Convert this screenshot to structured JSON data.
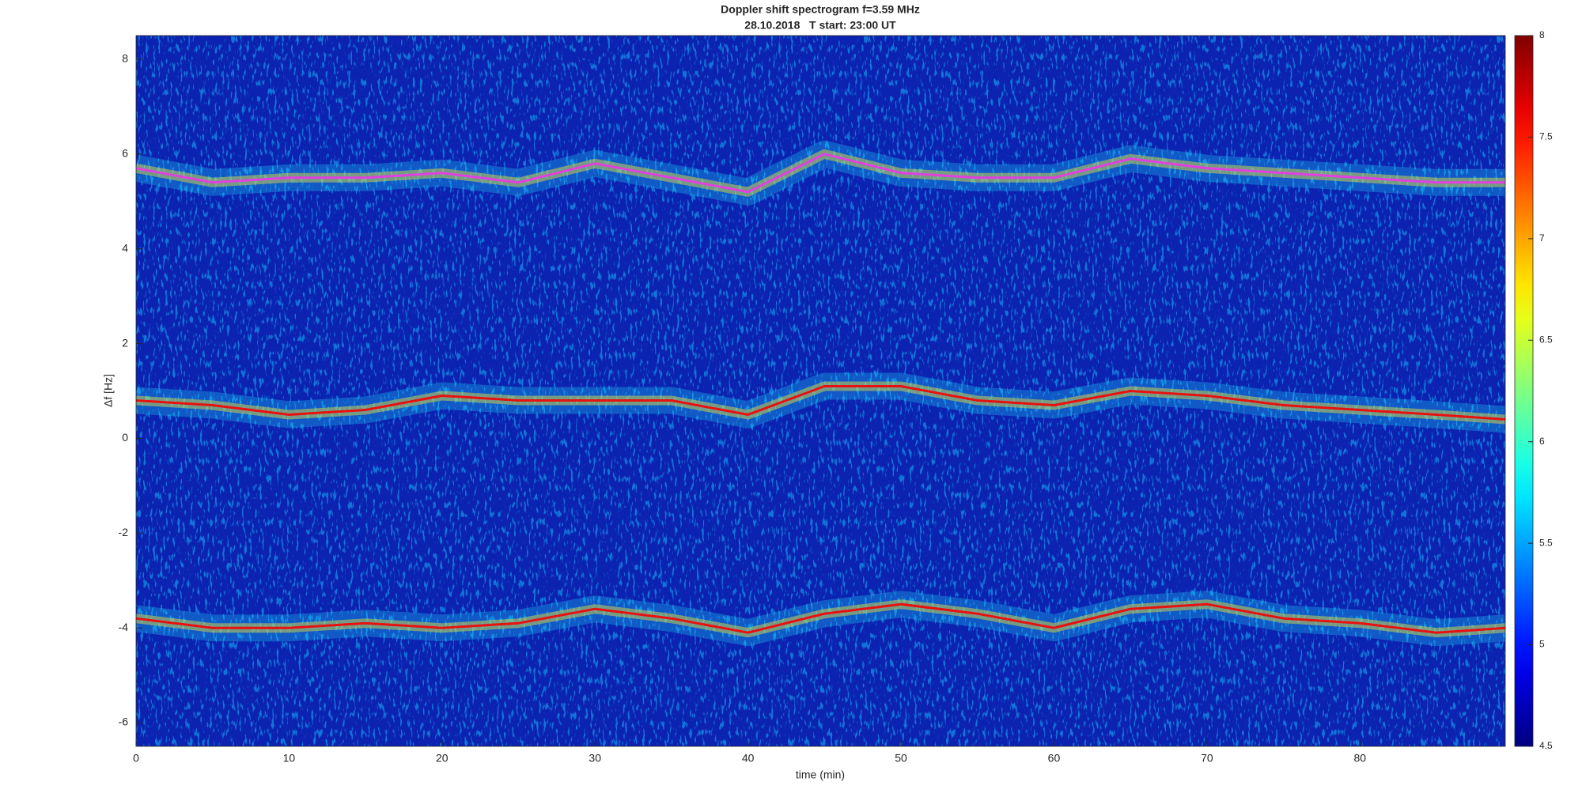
{
  "chart_data": {
    "type": "spectrogram",
    "title": "Doppler shift spectrogram f=3.59 MHz",
    "subtitle": "28.10.2018   T start: 23:00 UT",
    "x_label": "time (min)",
    "y_label": "Δf [Hz]",
    "x": [
      0,
      5,
      10,
      15,
      20,
      25,
      30,
      35,
      40,
      45,
      50,
      55,
      60,
      65,
      70,
      75,
      80,
      85,
      89.5
    ],
    "series": [
      {
        "color": "#e040e0",
        "values": [
          5.7,
          5.4,
          5.5,
          5.5,
          5.6,
          5.4,
          5.8,
          5.5,
          5.2,
          6.0,
          5.6,
          5.5,
          5.5,
          5.9,
          5.7,
          5.6,
          5.5,
          5.4,
          5.4
        ]
      },
      {
        "color": "#e81010",
        "values": [
          0.8,
          0.7,
          0.5,
          0.6,
          0.9,
          0.8,
          0.8,
          0.8,
          0.5,
          1.1,
          1.1,
          0.8,
          0.7,
          1.0,
          0.9,
          0.7,
          0.6,
          0.5,
          0.4
        ]
      },
      {
        "color": "#e81010",
        "values": [
          -3.8,
          -4.0,
          -4.0,
          -3.9,
          -4.0,
          -3.9,
          -3.6,
          -3.8,
          -4.1,
          -3.7,
          -3.5,
          -3.7,
          -4.0,
          -3.6,
          -3.5,
          -3.8,
          -3.9,
          -4.1,
          -4.0
        ]
      }
    ],
    "xlim": [
      0,
      89.5
    ],
    "xticks": [
      0,
      10,
      20,
      30,
      40,
      50,
      60,
      70,
      80
    ],
    "ylim": [
      -6.5,
      8.5
    ],
    "yticks": [
      -6,
      -4,
      -2,
      0,
      2,
      4,
      6,
      8
    ],
    "colormap": "jet",
    "clim": [
      4.5,
      8
    ],
    "cticks": [
      4.5,
      5,
      5.5,
      6,
      6.5,
      7,
      7.5,
      8
    ]
  }
}
